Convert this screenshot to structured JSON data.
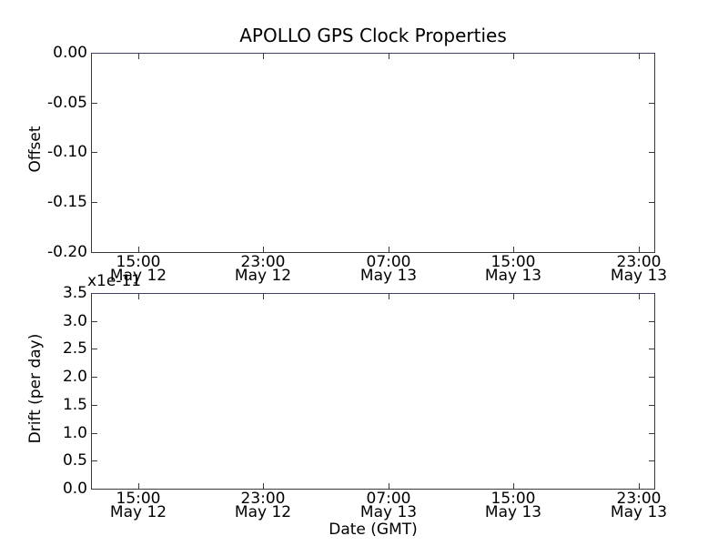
{
  "figure": {
    "title": "APOLLO GPS Clock Properties",
    "background_color": "#ffffff",
    "spine_color": "#3a3a3a"
  },
  "chart_data": [
    {
      "type": "line",
      "subplot": "top",
      "title": "APOLLO GPS Clock Properties",
      "xlabel": "",
      "ylabel": "Offset",
      "ylim": [
        -0.2,
        0.0
      ],
      "yticks": [
        "0.00",
        "-0.05",
        "-0.10",
        "-0.15",
        "-0.20"
      ],
      "xtick_times": [
        "15:00",
        "23:00",
        "07:00",
        "15:00",
        "23:00"
      ],
      "xtick_dates": [
        "May 12",
        "May 12",
        "May 13",
        "May 13",
        "May 13"
      ],
      "series": [],
      "grid": false,
      "legend": null,
      "note": "axes empty - no data plotted"
    },
    {
      "type": "line",
      "subplot": "bottom",
      "title": "",
      "xlabel": "Date (GMT)",
      "ylabel": "Drift (per day)",
      "y_offset_text": "x1e-11",
      "ylim": [
        0.0,
        3.5
      ],
      "y_scale_factor": "1e-11",
      "yticks": [
        "3.5",
        "3.0",
        "2.5",
        "2.0",
        "1.5",
        "1.0",
        "0.5",
        "0.0"
      ],
      "xtick_times": [
        "15:00",
        "23:00",
        "07:00",
        "15:00",
        "23:00"
      ],
      "xtick_dates": [
        "May 12",
        "May 12",
        "May 13",
        "May 13",
        "May 13"
      ],
      "series": [],
      "grid": false,
      "legend": null,
      "note": "axes empty - no data plotted"
    }
  ]
}
